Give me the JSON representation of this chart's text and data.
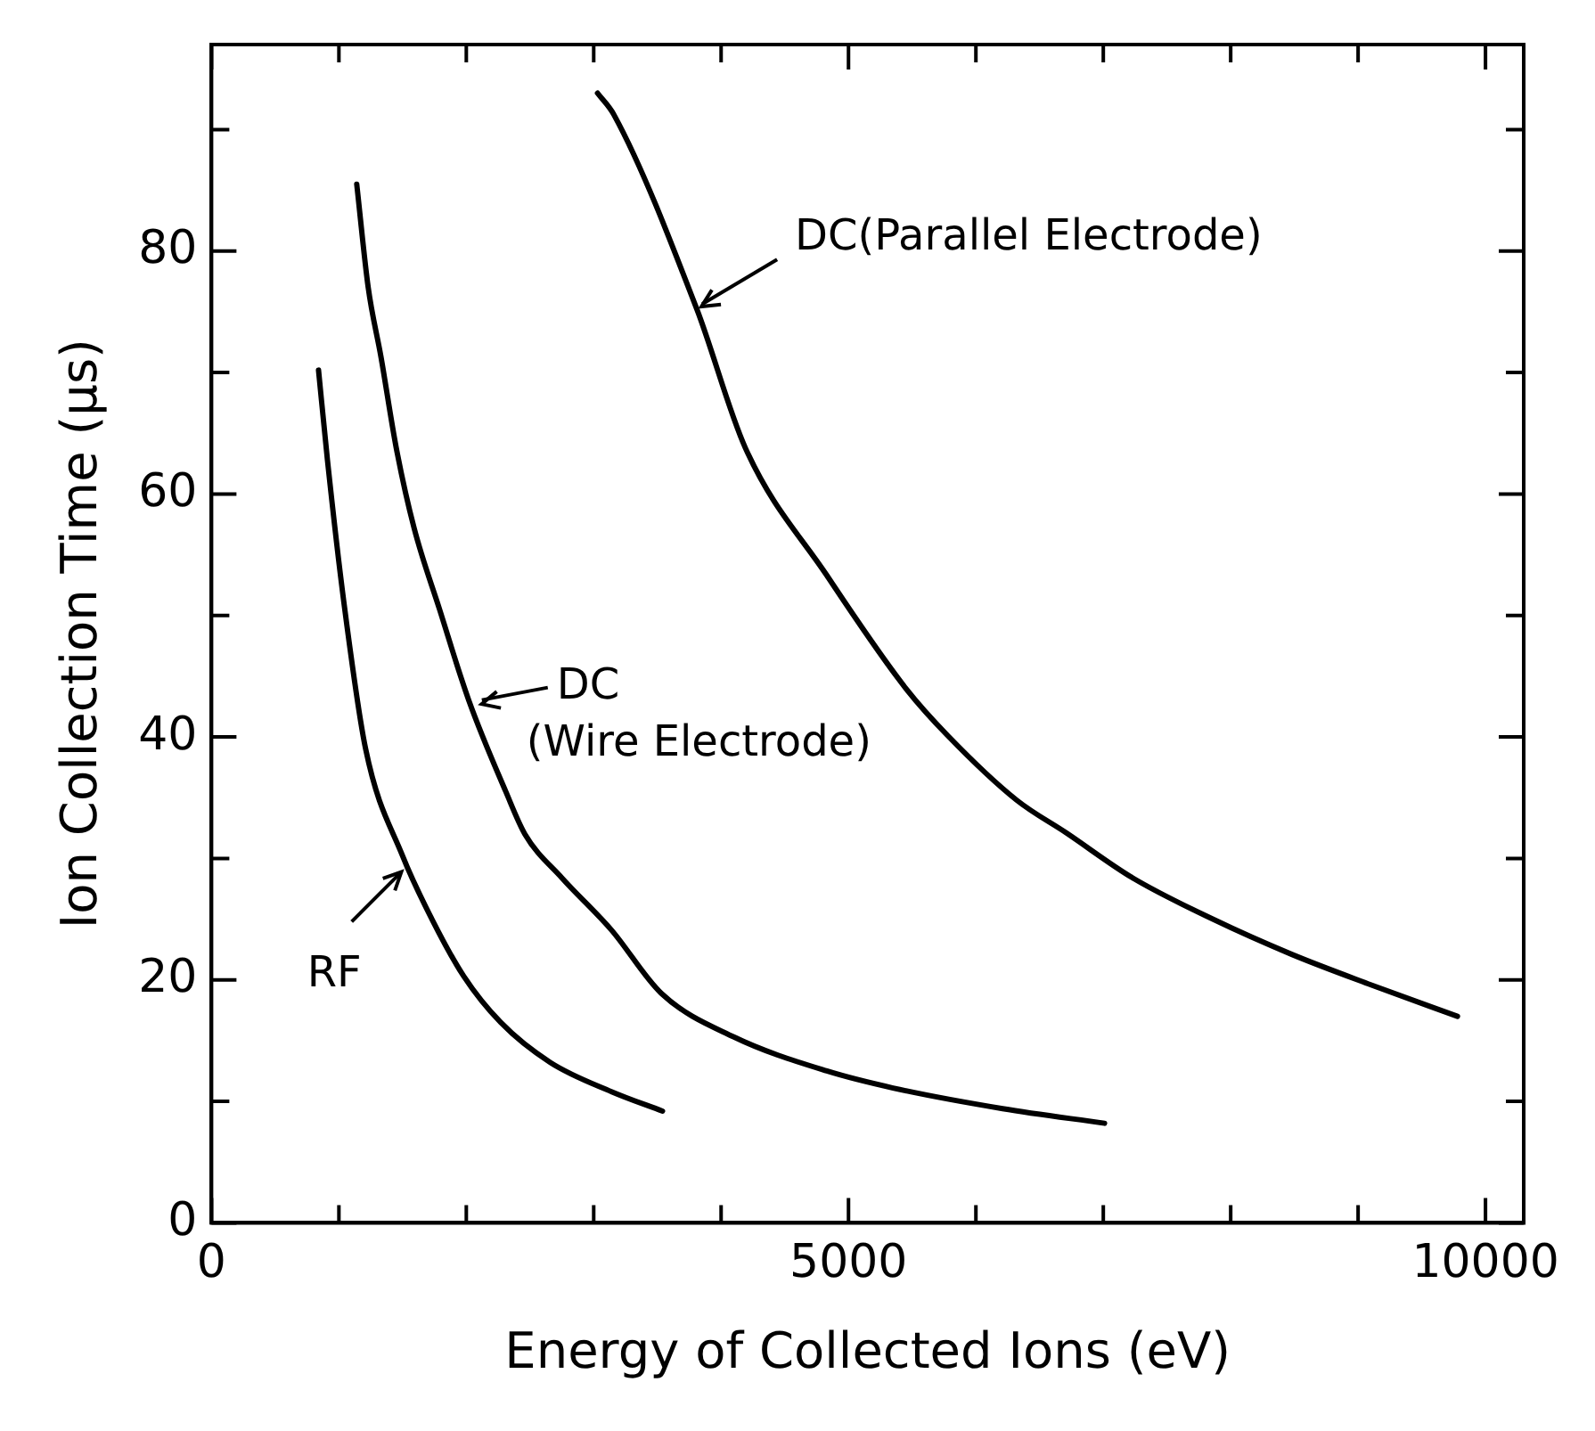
{
  "chart_data": {
    "type": "line",
    "xlabel": "Energy of Collected Ions (eV)",
    "ylabel": "Ion Collection Time (μs)",
    "xlim": [
      0,
      10300
    ],
    "ylim": [
      0,
      97
    ],
    "xticks": [
      0,
      {
        "value": 1000,
        "label": null
      },
      {
        "value": 2000,
        "label": null
      },
      {
        "value": 3000,
        "label": null
      },
      {
        "value": 4000,
        "label": null
      },
      5000,
      {
        "value": 6000,
        "label": null
      },
      {
        "value": 7000,
        "label": null
      },
      {
        "value": 8000,
        "label": null
      },
      {
        "value": 9000,
        "label": null
      },
      10000
    ],
    "yticks": [
      0,
      {
        "value": 10,
        "label": null
      },
      20,
      {
        "value": 30,
        "label": null
      },
      40,
      {
        "value": 50,
        "label": null
      },
      60,
      {
        "value": 70,
        "label": null
      },
      80,
      {
        "value": 90,
        "label": null
      }
    ],
    "grid": false,
    "legend": false,
    "marker": "none",
    "line_style": "solid",
    "series": [
      {
        "color": "#000000",
        "x": [
          840,
          910,
          1040,
          1210,
          1500,
          1730,
          1980,
          2270,
          2660,
          3140,
          3540
        ],
        "values": [
          70.2,
          62.8,
          51,
          39,
          30.2,
          25,
          20.3,
          16.5,
          13.2,
          10.8,
          9.2
        ]
      },
      {
        "color": "#000000",
        "x": [
          1140,
          1230,
          1330,
          1450,
          1590,
          1790,
          2020,
          2310,
          2460,
          2750,
          3140,
          3530,
          4100,
          4830,
          5350,
          6210,
          7010
        ],
        "values": [
          85.5,
          77,
          71.3,
          63.8,
          57.2,
          50.5,
          43,
          35.5,
          32,
          28.4,
          24.1,
          18.9,
          15.3,
          12.5,
          11.1,
          9.4,
          8.2
        ]
      },
      {
        "color": "#000000",
        "x": [
          3030,
          3160,
          3810,
          4190,
          4830,
          5450,
          5780,
          6320,
          6710,
          7230,
          7860,
          8480,
          9100,
          9780
        ],
        "values": [
          93,
          91.2,
          75.2,
          63.8,
          53.3,
          44,
          40.1,
          34.8,
          32.1,
          28.4,
          25,
          22.1,
          19.6,
          17
        ]
      }
    ],
    "annotations": [
      {
        "text": "RF",
        "x": 1520,
        "y": 29.2
      },
      {
        "text": "DC\n(Wire Electrode)",
        "x": 2080,
        "y": 42.6
      },
      {
        "text": "DC(Parallel Electrode)",
        "x": 3810,
        "y": 75.2
      }
    ]
  }
}
